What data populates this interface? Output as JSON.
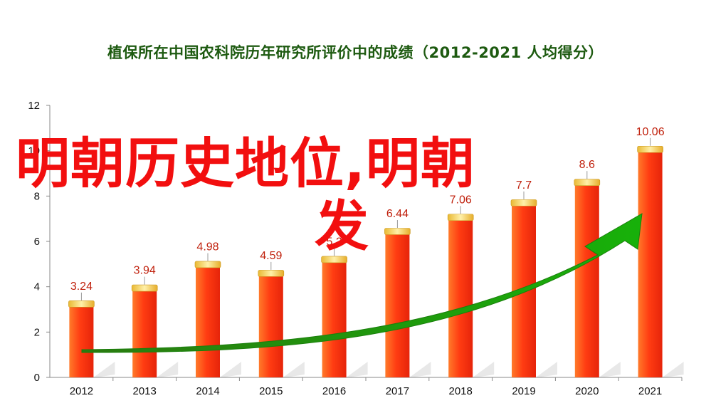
{
  "chart_data": {
    "type": "bar",
    "title": "植保所在中国农科院历年研究所评价中的成绩（2012-2021 人均得分）",
    "categories": [
      "2012",
      "2013",
      "2014",
      "2015",
      "2016",
      "2017",
      "2018",
      "2019",
      "2020",
      "2021"
    ],
    "values": [
      3.24,
      3.94,
      4.98,
      4.59,
      5.2,
      6.44,
      7.06,
      7.7,
      8.6,
      10.06
    ],
    "data_labels": [
      "3.24",
      "3.94",
      "4.98",
      "4.59",
      "5.2",
      "6.44",
      "7.06",
      "7.7",
      "8.6",
      "10.06"
    ],
    "ylim": [
      0,
      12
    ],
    "yticks": [
      0,
      2,
      4,
      6,
      8,
      10,
      12
    ],
    "ytick_labels": [
      "0",
      "2",
      "4",
      "6",
      "8",
      "10",
      "12"
    ],
    "grid": false,
    "colors": {
      "bar": "#f5401a",
      "bar_cap": "#f0c23c",
      "arrow": "#1f9a12",
      "title": "#1d5a10"
    }
  },
  "overlay": {
    "line1": "明朝历史地位,明朝",
    "line2": "发",
    "color": "#f20f0f"
  }
}
